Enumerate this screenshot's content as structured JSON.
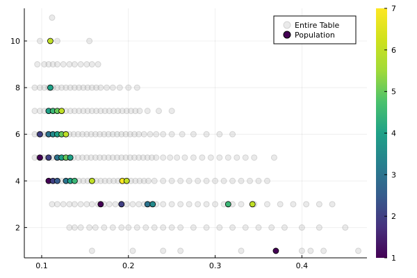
{
  "chart_data": {
    "type": "scatter",
    "title": "",
    "xlabel": "",
    "ylabel": "",
    "xlim": [
      0.08,
      0.475
    ],
    "ylim": [
      0.7,
      11.4
    ],
    "x_ticks": [
      0.1,
      0.2,
      0.3,
      0.4
    ],
    "x_tick_labels": [
      "0.1",
      "0.2",
      "0.3",
      "0.4"
    ],
    "y_ticks": [
      2,
      4,
      6,
      8,
      10
    ],
    "y_tick_labels": [
      "2",
      "4",
      "6",
      "8",
      "10"
    ],
    "grid": true,
    "legend": {
      "placement": "top-right",
      "entries": [
        {
          "label": "Entire Table",
          "color": "#bbbbbb"
        },
        {
          "label": "Population",
          "color": "#440154"
        }
      ]
    },
    "colorbar": {
      "colormap": "viridis",
      "min": 1,
      "max": 7,
      "ticks": [
        1,
        2,
        3,
        4,
        5,
        6,
        7
      ],
      "tick_labels": [
        "1",
        "2",
        "3",
        "4",
        "5",
        "6",
        "7"
      ]
    },
    "series": [
      {
        "name": "Entire Table",
        "color": "#bbbbbb",
        "points": [
          [
            0.112,
            11
          ],
          [
            0.098,
            10
          ],
          [
            0.118,
            10
          ],
          [
            0.155,
            10
          ],
          [
            0.095,
            9
          ],
          [
            0.103,
            9
          ],
          [
            0.108,
            9
          ],
          [
            0.113,
            9
          ],
          [
            0.118,
            9
          ],
          [
            0.125,
            9
          ],
          [
            0.132,
            9
          ],
          [
            0.138,
            9
          ],
          [
            0.145,
            9
          ],
          [
            0.152,
            9
          ],
          [
            0.158,
            9
          ],
          [
            0.165,
            9
          ],
          [
            0.092,
            8
          ],
          [
            0.098,
            8
          ],
          [
            0.103,
            8
          ],
          [
            0.108,
            8
          ],
          [
            0.113,
            8
          ],
          [
            0.118,
            8
          ],
          [
            0.123,
            8
          ],
          [
            0.128,
            8
          ],
          [
            0.133,
            8
          ],
          [
            0.138,
            8
          ],
          [
            0.143,
            8
          ],
          [
            0.148,
            8
          ],
          [
            0.153,
            8
          ],
          [
            0.158,
            8
          ],
          [
            0.163,
            8
          ],
          [
            0.168,
            8
          ],
          [
            0.175,
            8
          ],
          [
            0.182,
            8
          ],
          [
            0.19,
            8
          ],
          [
            0.2,
            8
          ],
          [
            0.21,
            8
          ],
          [
            0.092,
            7
          ],
          [
            0.098,
            7
          ],
          [
            0.103,
            7
          ],
          [
            0.108,
            7
          ],
          [
            0.113,
            7
          ],
          [
            0.118,
            7
          ],
          [
            0.123,
            7
          ],
          [
            0.128,
            7
          ],
          [
            0.133,
            7
          ],
          [
            0.138,
            7
          ],
          [
            0.143,
            7
          ],
          [
            0.148,
            7
          ],
          [
            0.153,
            7
          ],
          [
            0.158,
            7
          ],
          [
            0.163,
            7
          ],
          [
            0.168,
            7
          ],
          [
            0.173,
            7
          ],
          [
            0.178,
            7
          ],
          [
            0.183,
            7
          ],
          [
            0.188,
            7
          ],
          [
            0.193,
            7
          ],
          [
            0.198,
            7
          ],
          [
            0.203,
            7
          ],
          [
            0.208,
            7
          ],
          [
            0.213,
            7
          ],
          [
            0.222,
            7
          ],
          [
            0.235,
            7
          ],
          [
            0.25,
            7
          ],
          [
            0.092,
            6
          ],
          [
            0.097,
            6
          ],
          [
            0.102,
            6
          ],
          [
            0.107,
            6
          ],
          [
            0.112,
            6
          ],
          [
            0.117,
            6
          ],
          [
            0.122,
            6
          ],
          [
            0.127,
            6
          ],
          [
            0.132,
            6
          ],
          [
            0.137,
            6
          ],
          [
            0.142,
            6
          ],
          [
            0.147,
            6
          ],
          [
            0.152,
            6
          ],
          [
            0.157,
            6
          ],
          [
            0.162,
            6
          ],
          [
            0.167,
            6
          ],
          [
            0.172,
            6
          ],
          [
            0.177,
            6
          ],
          [
            0.182,
            6
          ],
          [
            0.187,
            6
          ],
          [
            0.192,
            6
          ],
          [
            0.197,
            6
          ],
          [
            0.202,
            6
          ],
          [
            0.207,
            6
          ],
          [
            0.212,
            6
          ],
          [
            0.218,
            6
          ],
          [
            0.225,
            6
          ],
          [
            0.232,
            6
          ],
          [
            0.24,
            6
          ],
          [
            0.25,
            6
          ],
          [
            0.262,
            6
          ],
          [
            0.275,
            6
          ],
          [
            0.29,
            6
          ],
          [
            0.305,
            6
          ],
          [
            0.32,
            6
          ],
          [
            0.092,
            5
          ],
          [
            0.097,
            5
          ],
          [
            0.102,
            5
          ],
          [
            0.107,
            5
          ],
          [
            0.112,
            5
          ],
          [
            0.117,
            5
          ],
          [
            0.122,
            5
          ],
          [
            0.127,
            5
          ],
          [
            0.132,
            5
          ],
          [
            0.137,
            5
          ],
          [
            0.142,
            5
          ],
          [
            0.147,
            5
          ],
          [
            0.152,
            5
          ],
          [
            0.157,
            5
          ],
          [
            0.162,
            5
          ],
          [
            0.167,
            5
          ],
          [
            0.172,
            5
          ],
          [
            0.177,
            5
          ],
          [
            0.182,
            5
          ],
          [
            0.187,
            5
          ],
          [
            0.192,
            5
          ],
          [
            0.197,
            5
          ],
          [
            0.202,
            5
          ],
          [
            0.207,
            5
          ],
          [
            0.212,
            5
          ],
          [
            0.217,
            5
          ],
          [
            0.222,
            5
          ],
          [
            0.227,
            5
          ],
          [
            0.232,
            5
          ],
          [
            0.24,
            5
          ],
          [
            0.248,
            5
          ],
          [
            0.256,
            5
          ],
          [
            0.265,
            5
          ],
          [
            0.275,
            5
          ],
          [
            0.285,
            5
          ],
          [
            0.295,
            5
          ],
          [
            0.305,
            5
          ],
          [
            0.315,
            5
          ],
          [
            0.325,
            5
          ],
          [
            0.335,
            5
          ],
          [
            0.345,
            5
          ],
          [
            0.368,
            5
          ],
          [
            0.108,
            4
          ],
          [
            0.113,
            4
          ],
          [
            0.118,
            4
          ],
          [
            0.123,
            4
          ],
          [
            0.128,
            4
          ],
          [
            0.133,
            4
          ],
          [
            0.138,
            4
          ],
          [
            0.143,
            4
          ],
          [
            0.148,
            4
          ],
          [
            0.153,
            4
          ],
          [
            0.158,
            4
          ],
          [
            0.163,
            4
          ],
          [
            0.168,
            4
          ],
          [
            0.173,
            4
          ],
          [
            0.178,
            4
          ],
          [
            0.183,
            4
          ],
          [
            0.188,
            4
          ],
          [
            0.193,
            4
          ],
          [
            0.198,
            4
          ],
          [
            0.203,
            4
          ],
          [
            0.208,
            4
          ],
          [
            0.213,
            4
          ],
          [
            0.218,
            4
          ],
          [
            0.223,
            4
          ],
          [
            0.23,
            4
          ],
          [
            0.24,
            4
          ],
          [
            0.25,
            4
          ],
          [
            0.26,
            4
          ],
          [
            0.27,
            4
          ],
          [
            0.28,
            4
          ],
          [
            0.29,
            4
          ],
          [
            0.3,
            4
          ],
          [
            0.31,
            4
          ],
          [
            0.32,
            4
          ],
          [
            0.33,
            4
          ],
          [
            0.34,
            4
          ],
          [
            0.35,
            4
          ],
          [
            0.36,
            4
          ],
          [
            0.112,
            3
          ],
          [
            0.118,
            3
          ],
          [
            0.125,
            3
          ],
          [
            0.132,
            3
          ],
          [
            0.138,
            3
          ],
          [
            0.145,
            3
          ],
          [
            0.152,
            3
          ],
          [
            0.158,
            3
          ],
          [
            0.165,
            3
          ],
          [
            0.172,
            3
          ],
          [
            0.178,
            3
          ],
          [
            0.185,
            3
          ],
          [
            0.192,
            3
          ],
          [
            0.198,
            3
          ],
          [
            0.205,
            3
          ],
          [
            0.212,
            3
          ],
          [
            0.218,
            3
          ],
          [
            0.225,
            3
          ],
          [
            0.232,
            3
          ],
          [
            0.24,
            3
          ],
          [
            0.25,
            3
          ],
          [
            0.26,
            3
          ],
          [
            0.27,
            3
          ],
          [
            0.28,
            3
          ],
          [
            0.29,
            3
          ],
          [
            0.3,
            3
          ],
          [
            0.31,
            3
          ],
          [
            0.32,
            3
          ],
          [
            0.33,
            3
          ],
          [
            0.345,
            3
          ],
          [
            0.36,
            3
          ],
          [
            0.375,
            3
          ],
          [
            0.39,
            3
          ],
          [
            0.405,
            3
          ],
          [
            0.42,
            3
          ],
          [
            0.435,
            3
          ],
          [
            0.132,
            2
          ],
          [
            0.138,
            2
          ],
          [
            0.145,
            2
          ],
          [
            0.155,
            2
          ],
          [
            0.162,
            2
          ],
          [
            0.172,
            2
          ],
          [
            0.182,
            2
          ],
          [
            0.192,
            2
          ],
          [
            0.2,
            2
          ],
          [
            0.21,
            2
          ],
          [
            0.22,
            2
          ],
          [
            0.23,
            2
          ],
          [
            0.24,
            2
          ],
          [
            0.25,
            2
          ],
          [
            0.26,
            2
          ],
          [
            0.275,
            2
          ],
          [
            0.29,
            2
          ],
          [
            0.305,
            2
          ],
          [
            0.32,
            2
          ],
          [
            0.335,
            2
          ],
          [
            0.35,
            2
          ],
          [
            0.365,
            2
          ],
          [
            0.38,
            2
          ],
          [
            0.4,
            2
          ],
          [
            0.42,
            2
          ],
          [
            0.45,
            2
          ],
          [
            0.158,
            1
          ],
          [
            0.205,
            1
          ],
          [
            0.24,
            1
          ],
          [
            0.26,
            1
          ],
          [
            0.33,
            1
          ],
          [
            0.37,
            1
          ],
          [
            0.4,
            1
          ],
          [
            0.41,
            1
          ],
          [
            0.425,
            1
          ],
          [
            0.465,
            1
          ]
        ]
      },
      {
        "name": "Population",
        "colormap": "viridis",
        "points": [
          [
            0.11,
            10,
            6
          ],
          [
            0.11,
            8,
            4
          ],
          [
            0.108,
            7,
            4
          ],
          [
            0.113,
            7,
            4.5
          ],
          [
            0.118,
            7,
            5
          ],
          [
            0.123,
            7,
            6
          ],
          [
            0.098,
            6,
            2
          ],
          [
            0.108,
            6,
            3
          ],
          [
            0.113,
            6,
            3.5
          ],
          [
            0.118,
            6,
            4
          ],
          [
            0.123,
            6,
            5
          ],
          [
            0.128,
            6,
            6
          ],
          [
            0.098,
            5,
            1
          ],
          [
            0.108,
            5,
            2
          ],
          [
            0.118,
            5,
            3
          ],
          [
            0.123,
            5,
            4
          ],
          [
            0.128,
            5,
            5
          ],
          [
            0.133,
            5,
            4
          ],
          [
            0.108,
            4,
            1
          ],
          [
            0.113,
            4,
            2
          ],
          [
            0.118,
            4,
            2.5
          ],
          [
            0.128,
            4,
            3
          ],
          [
            0.133,
            4,
            4
          ],
          [
            0.138,
            4,
            4.5
          ],
          [
            0.158,
            4,
            6
          ],
          [
            0.193,
            4,
            7
          ],
          [
            0.198,
            4,
            6
          ],
          [
            0.168,
            3,
            1
          ],
          [
            0.192,
            3,
            2
          ],
          [
            0.222,
            3,
            3
          ],
          [
            0.228,
            3,
            3.5
          ],
          [
            0.315,
            3,
            4.5
          ],
          [
            0.343,
            3,
            6
          ],
          [
            0.37,
            1,
            1
          ]
        ]
      }
    ]
  }
}
